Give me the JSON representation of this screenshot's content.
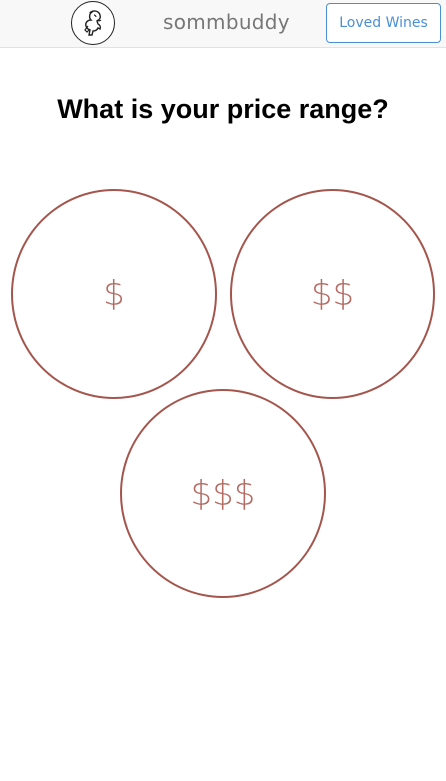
{
  "header": {
    "brand": "sommbuddy",
    "logo_icon": "sommelier-logo-icon",
    "loved_wines_label": "Loved Wines"
  },
  "main": {
    "question": "What is your price range?",
    "options": [
      {
        "label": "$"
      },
      {
        "label": "$$"
      },
      {
        "label": "$$$"
      }
    ]
  },
  "colors": {
    "circle_border": "#a4554c",
    "circle_text": "#b56a62",
    "button_accent": "#4a8fd6",
    "navbar_bg": "#f8f8f8"
  }
}
